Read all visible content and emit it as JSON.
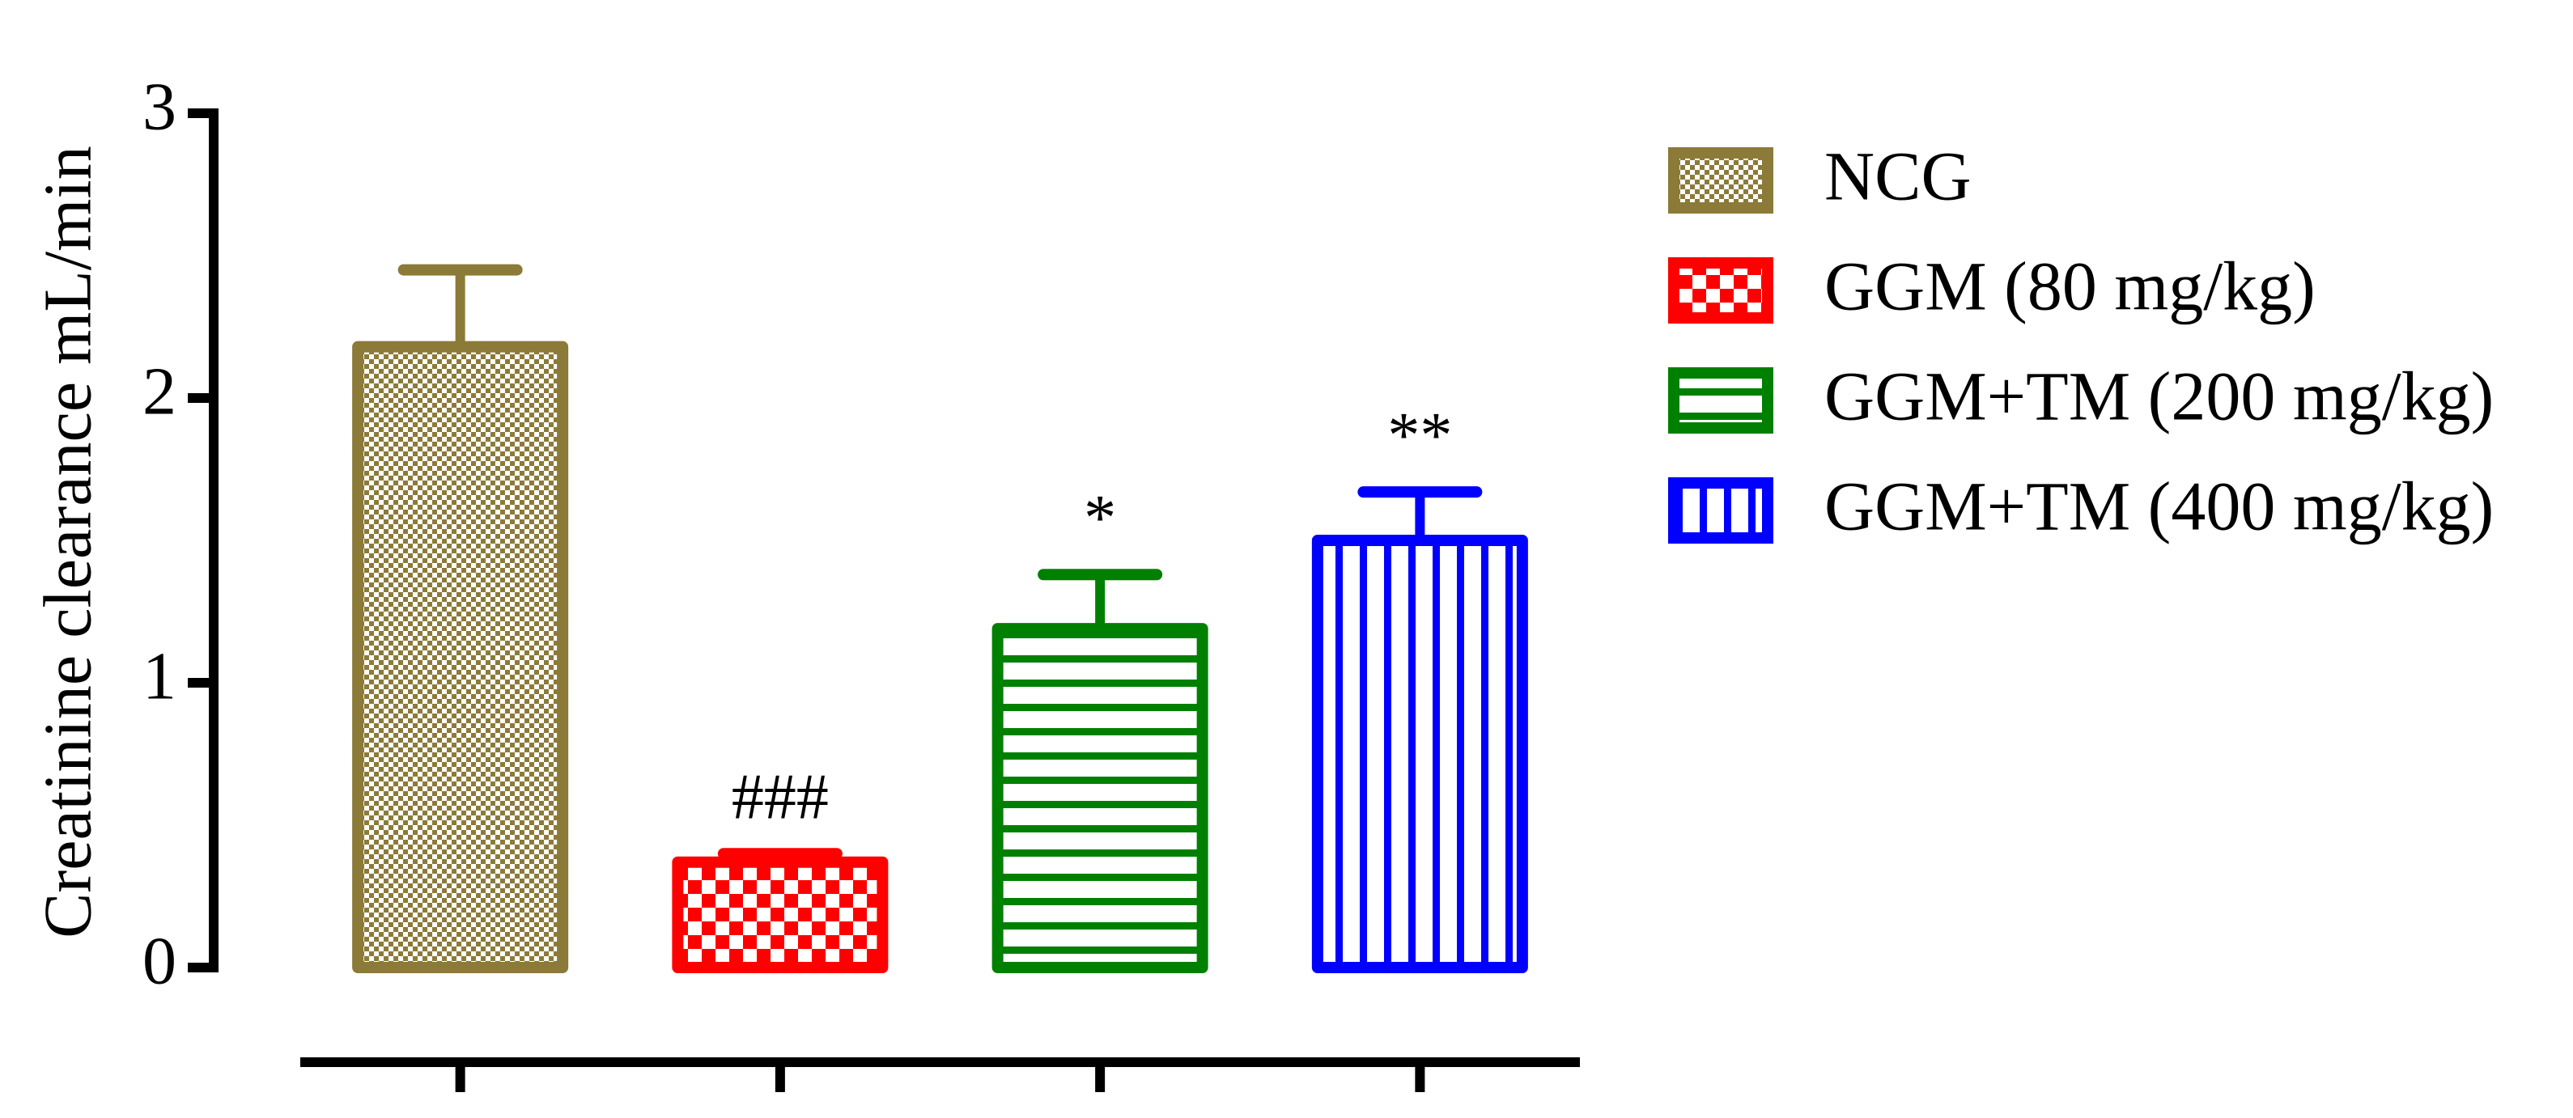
{
  "chart_data": {
    "type": "bar",
    "y_label": "Creatinine clearance mL/min",
    "categories": [
      "NCG",
      "GGM (80 mg/kg)",
      "GGM+TM (200 mg/kg)",
      "GGM+TM (400 mg/kg)"
    ],
    "values": [
      2.18,
      0.37,
      1.19,
      1.5
    ],
    "errors": [
      0.27,
      0.03,
      0.19,
      0.17
    ],
    "colors": [
      "#8c7a38",
      "#ff0000",
      "#008000",
      "#0000ff"
    ],
    "patterns": [
      "checker-fine",
      "checker-coarse",
      "horizontal",
      "vertical"
    ],
    "annotations": [
      {
        "index": 1,
        "text": "###"
      },
      {
        "index": 2,
        "text": "*"
      },
      {
        "index": 3,
        "text": "**"
      }
    ],
    "ylim": [
      0,
      3
    ],
    "yticks": [
      0,
      1,
      2,
      3
    ],
    "legend": "right"
  }
}
